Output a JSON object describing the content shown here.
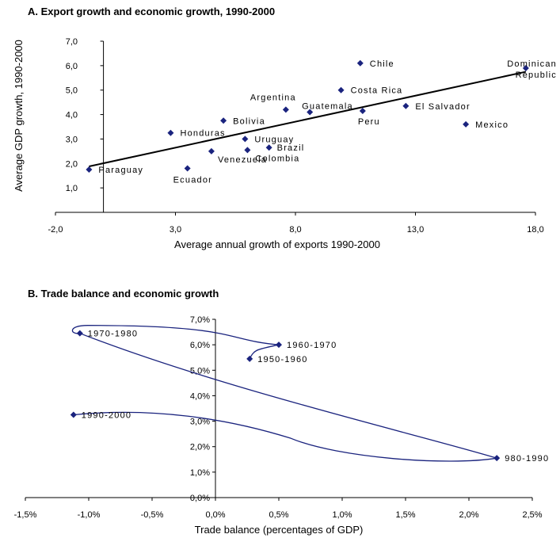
{
  "chart_data": [
    {
      "type": "scatter",
      "title": "A. Export growth and economic growth, 1990-2000",
      "xlabel": "Average annual growth of exports 1990-2000",
      "ylabel": "Average GDP growth, 1990-2000",
      "xlim": [
        -2.0,
        18.0
      ],
      "ylim": [
        0,
        7.0
      ],
      "x_ticks": [
        "-2,0",
        "3,0",
        "8,0",
        "13,0",
        "18,0"
      ],
      "y_ticks": [
        "1,0",
        "2,0",
        "3,0",
        "4,0",
        "5,0",
        "6,0",
        "7,0"
      ],
      "grid": false,
      "marker_color": "#1a237e",
      "points": [
        {
          "name": "Paraguay",
          "x": -0.6,
          "y": 1.75
        },
        {
          "name": "Ecuador",
          "x": 3.5,
          "y": 1.8
        },
        {
          "name": "Honduras",
          "x": 2.8,
          "y": 3.25
        },
        {
          "name": "Venezuela",
          "x": 4.5,
          "y": 2.5
        },
        {
          "name": "Bolivia",
          "x": 5.0,
          "y": 3.75
        },
        {
          "name": "Uruguay",
          "x": 5.9,
          "y": 3.0
        },
        {
          "name": "Colombia",
          "x": 6.0,
          "y": 2.55
        },
        {
          "name": "Brazil",
          "x": 6.9,
          "y": 2.65
        },
        {
          "name": "Argentina",
          "x": 7.6,
          "y": 4.2
        },
        {
          "name": "Guatemala",
          "x": 8.6,
          "y": 4.1
        },
        {
          "name": "Costa Rica",
          "x": 9.9,
          "y": 5.0
        },
        {
          "name": "Chile",
          "x": 10.7,
          "y": 6.1
        },
        {
          "name": "Peru",
          "x": 10.8,
          "y": 4.15
        },
        {
          "name": "El Salvador",
          "x": 12.6,
          "y": 4.35
        },
        {
          "name": "Mexico",
          "x": 15.1,
          "y": 3.6
        },
        {
          "name": "Dominican Republic",
          "x": 17.6,
          "y": 5.9
        }
      ],
      "trendline": {
        "x": [
          -0.6,
          17.6
        ],
        "y": [
          1.88,
          5.75
        ]
      }
    },
    {
      "type": "line",
      "title": "B. Trade balance and economic growth",
      "xlabel": "Trade balance (percentages of GDP)",
      "ylabel": "",
      "xlim": [
        -1.5,
        2.5
      ],
      "ylim": [
        0,
        7.0
      ],
      "x_ticks": [
        "-1,5%",
        "-1,0%",
        "-0,5%",
        "0,0%",
        "0,5%",
        "1,0%",
        "1,5%",
        "2,0%",
        "2,5%"
      ],
      "y_ticks": [
        "0,0%",
        "1,0%",
        "2,0%",
        "3,0%",
        "4,0%",
        "5,0%",
        "6,0%",
        "7,0%"
      ],
      "grid": false,
      "line_color": "#1a237e",
      "points": [
        {
          "name": "1950-1960",
          "x": 0.27,
          "y": 5.45
        },
        {
          "name": "1960-1970",
          "x": 0.5,
          "y": 6.0
        },
        {
          "name": "1970-1980",
          "x": -1.07,
          "y": 6.45
        },
        {
          "name": "980-1990",
          "x": 2.22,
          "y": 1.55
        },
        {
          "name": "1990-2000",
          "x": -1.12,
          "y": 3.25
        }
      ]
    }
  ]
}
